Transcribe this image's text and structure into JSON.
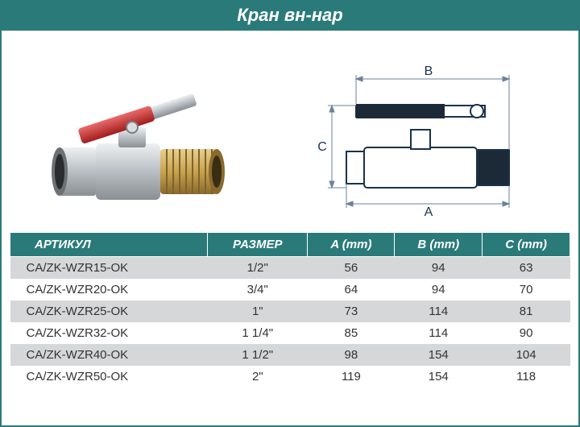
{
  "title": "Кран вн-нар",
  "diagram_labels": {
    "A": "A",
    "B": "B",
    "C": "C"
  },
  "table": {
    "columns": [
      "АРТИКУЛ",
      "РАЗМЕР",
      "A (mm)",
      "B (mm)",
      "C (mm)"
    ],
    "rows": [
      [
        "CA/ZK-WZR15-OK",
        "1/2\"",
        "56",
        "94",
        "63"
      ],
      [
        "CA/ZK-WZR20-OK",
        "3/4\"",
        "64",
        "94",
        "70"
      ],
      [
        "CA/ZK-WZR25-OK",
        "1\"",
        "73",
        "114",
        "81"
      ],
      [
        "CA/ZK-WZR32-OK",
        "1 1/4\"",
        "85",
        "114",
        "90"
      ],
      [
        "CA/ZK-WZR40-OK",
        "1 1/2\"",
        "98",
        "154",
        "104"
      ],
      [
        "CA/ZK-WZR50-OK",
        "2\"",
        "119",
        "154",
        "118"
      ]
    ],
    "col_align": [
      "left",
      "center",
      "center",
      "center",
      "center"
    ],
    "header_bg": "#2b7a7a",
    "header_fg": "#ffffff",
    "row_odd_bg": "#d6d7d8",
    "row_even_bg": "#ffffff"
  },
  "colors": {
    "brand": "#2b7a7a",
    "handle_red": "#c62828",
    "brass": "#c9a34e",
    "steel": "#cfd3d6",
    "steel_dark": "#8a8f93",
    "diagram_line": "#19324a",
    "dim_line": "#6a829b"
  }
}
